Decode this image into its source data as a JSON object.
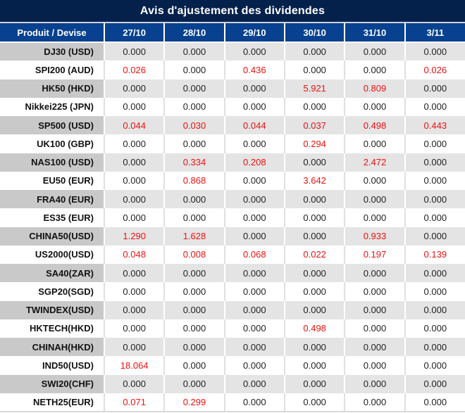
{
  "title": "Avis d'ajustement des dividendes",
  "columns": [
    "Produit / Devise",
    "27/10",
    "28/10",
    "29/10",
    "30/10",
    "31/10",
    "3/11"
  ],
  "rows": [
    {
      "product": "DJ30 (USD)",
      "values": [
        "0.000",
        "0.000",
        "0.000",
        "0.000",
        "0.000",
        "0.000"
      ],
      "red": [
        false,
        false,
        false,
        false,
        false,
        false
      ]
    },
    {
      "product": "SPI200 (AUD)",
      "values": [
        "0.026",
        "0.000",
        "0.436",
        "0.000",
        "0.000",
        "0.026"
      ],
      "red": [
        true,
        false,
        true,
        false,
        false,
        true
      ]
    },
    {
      "product": "HK50 (HKD)",
      "values": [
        "0.000",
        "0.000",
        "0.000",
        "5.921",
        "0.809",
        "0.000"
      ],
      "red": [
        false,
        false,
        false,
        true,
        true,
        false
      ]
    },
    {
      "product": "Nikkei225 (JPN)",
      "values": [
        "0.000",
        "0.000",
        "0.000",
        "0.000",
        "0.000",
        "0.000"
      ],
      "red": [
        false,
        false,
        false,
        false,
        false,
        false
      ]
    },
    {
      "product": "SP500 (USD)",
      "values": [
        "0.044",
        "0.030",
        "0.044",
        "0.037",
        "0.498",
        "0.443"
      ],
      "red": [
        true,
        true,
        true,
        true,
        true,
        true
      ]
    },
    {
      "product": "UK100 (GBP)",
      "values": [
        "0.000",
        "0.000",
        "0.000",
        "0.294",
        "0.000",
        "0.000"
      ],
      "red": [
        false,
        false,
        false,
        true,
        false,
        false
      ]
    },
    {
      "product": "NAS100 (USD)",
      "values": [
        "0.000",
        "0.334",
        "0.208",
        "0.000",
        "2.472",
        "0.000"
      ],
      "red": [
        false,
        true,
        true,
        false,
        true,
        false
      ]
    },
    {
      "product": "EU50 (EUR)",
      "values": [
        "0.000",
        "0.868",
        "0.000",
        "3.642",
        "0.000",
        "0.000"
      ],
      "red": [
        false,
        true,
        false,
        true,
        false,
        false
      ]
    },
    {
      "product": "FRA40 (EUR)",
      "values": [
        "0.000",
        "0.000",
        "0.000",
        "0.000",
        "0.000",
        "0.000"
      ],
      "red": [
        false,
        false,
        false,
        false,
        false,
        false
      ]
    },
    {
      "product": "ES35 (EUR)",
      "values": [
        "0.000",
        "0.000",
        "0.000",
        "0.000",
        "0.000",
        "0.000"
      ],
      "red": [
        false,
        false,
        false,
        false,
        false,
        false
      ]
    },
    {
      "product": "CHINA50(USD)",
      "values": [
        "1.290",
        "1.628",
        "0.000",
        "0.000",
        "0.933",
        "0.000"
      ],
      "red": [
        true,
        true,
        false,
        false,
        true,
        false
      ]
    },
    {
      "product": "US2000(USD)",
      "values": [
        "0.048",
        "0.008",
        "0.068",
        "0.022",
        "0.197",
        "0.139"
      ],
      "red": [
        true,
        true,
        true,
        true,
        true,
        true
      ]
    },
    {
      "product": "SA40(ZAR)",
      "values": [
        "0.000",
        "0.000",
        "0.000",
        "0.000",
        "0.000",
        "0.000"
      ],
      "red": [
        false,
        false,
        false,
        false,
        false,
        false
      ]
    },
    {
      "product": "SGP20(SGD)",
      "values": [
        "0.000",
        "0.000",
        "0.000",
        "0.000",
        "0.000",
        "0.000"
      ],
      "red": [
        false,
        false,
        false,
        false,
        false,
        false
      ]
    },
    {
      "product": "TWINDEX(USD)",
      "values": [
        "0.000",
        "0.000",
        "0.000",
        "0.000",
        "0.000",
        "0.000"
      ],
      "red": [
        false,
        false,
        false,
        false,
        false,
        false
      ]
    },
    {
      "product": "HKTECH(HKD)",
      "values": [
        "0.000",
        "0.000",
        "0.000",
        "0.498",
        "0.000",
        "0.000"
      ],
      "red": [
        false,
        false,
        false,
        true,
        false,
        false
      ]
    },
    {
      "product": "CHINAH(HKD)",
      "values": [
        "0.000",
        "0.000",
        "0.000",
        "0.000",
        "0.000",
        "0.000"
      ],
      "red": [
        false,
        false,
        false,
        false,
        false,
        false
      ]
    },
    {
      "product": "IND50(USD)",
      "values": [
        "18.064",
        "0.000",
        "0.000",
        "0.000",
        "0.000",
        "0.000"
      ],
      "red": [
        true,
        false,
        false,
        false,
        false,
        false
      ]
    },
    {
      "product": "SWI20(CHF)",
      "values": [
        "0.000",
        "0.000",
        "0.000",
        "0.000",
        "0.000",
        "0.000"
      ],
      "red": [
        false,
        false,
        false,
        false,
        false,
        false
      ]
    },
    {
      "product": "NETH25(EUR)",
      "values": [
        "0.071",
        "0.299",
        "0.000",
        "0.000",
        "0.000",
        "0.000"
      ],
      "red": [
        true,
        true,
        false,
        false,
        false,
        false
      ]
    }
  ],
  "colors": {
    "title_bg": "#04214b",
    "header_bg": "#08418f",
    "row_gray": "#e4e4e4",
    "product_gray": "#c9c9c9",
    "row_white": "#ffffff",
    "negative_red": "#ee1111",
    "text_dark": "#1f1f1f"
  }
}
